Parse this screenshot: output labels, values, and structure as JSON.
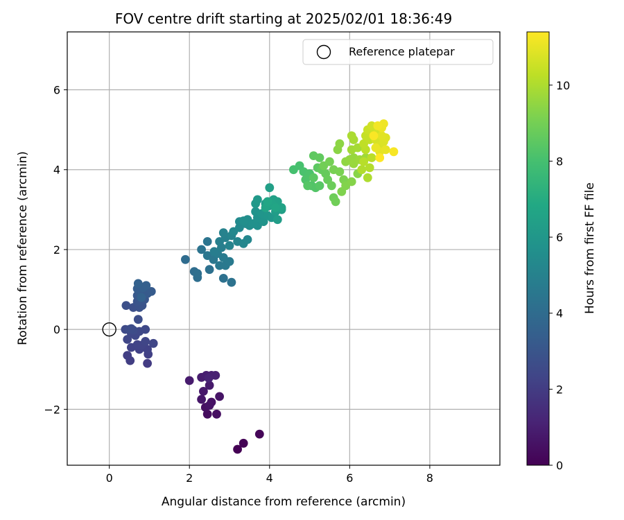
{
  "chart_data": {
    "type": "scatter",
    "title": "FOV centre drift starting at 2025/02/01 18:36:49",
    "xlabel": "Angular distance from reference (arcmin)",
    "ylabel": "Rotation from reference (arcmin)",
    "xlim": [
      -1.05,
      9.75
    ],
    "ylim": [
      -3.4,
      7.45
    ],
    "xticks": [
      0,
      2,
      4,
      6,
      8
    ],
    "xtick_labels": [
      "0",
      "2",
      "4",
      "6",
      "8"
    ],
    "yticks": [
      -2,
      0,
      2,
      4,
      6
    ],
    "ytick_labels": [
      "−2",
      "0",
      "2",
      "4",
      "6"
    ],
    "grid": true,
    "legend": {
      "position": "top-right",
      "entries": [
        {
          "label": "Reference platepar",
          "marker": "open-circle",
          "x": 0,
          "y": 0
        }
      ]
    },
    "colorbar": {
      "label": "Hours from first FF file",
      "colormap": "viridis",
      "range": [
        0,
        11.4
      ],
      "ticks": [
        0,
        2,
        4,
        6,
        8,
        10
      ],
      "tick_labels": [
        "0",
        "2",
        "4",
        "6",
        "8",
        "10"
      ]
    },
    "series": [
      {
        "points": [
          [
            3.2,
            -3.0,
            0.0
          ],
          [
            3.35,
            -2.85,
            0.05
          ],
          [
            3.75,
            -2.62,
            0.15
          ],
          [
            2.45,
            -2.12,
            0.35
          ],
          [
            2.68,
            -2.12,
            0.45
          ],
          [
            2.4,
            -1.95,
            0.5
          ],
          [
            2.55,
            -1.82,
            0.55
          ],
          [
            2.5,
            -1.9,
            0.6
          ],
          [
            2.75,
            -1.68,
            0.62
          ],
          [
            2.3,
            -1.75,
            0.7
          ],
          [
            2.35,
            -1.55,
            0.75
          ],
          [
            2.5,
            -1.4,
            0.8
          ],
          [
            2.0,
            -1.28,
            0.85
          ],
          [
            2.3,
            -1.2,
            0.9
          ],
          [
            2.42,
            -1.15,
            0.95
          ],
          [
            2.55,
            -1.15,
            1.0
          ],
          [
            2.65,
            -1.15,
            1.05
          ],
          [
            2.48,
            -1.22,
            1.1
          ],
          [
            0.95,
            -0.85,
            2.0
          ],
          [
            0.52,
            -0.78,
            2.05
          ],
          [
            0.45,
            -0.65,
            2.1
          ],
          [
            0.97,
            -0.62,
            2.15
          ],
          [
            0.75,
            -0.5,
            2.2
          ],
          [
            0.95,
            -0.5,
            2.2
          ],
          [
            0.55,
            -0.45,
            2.25
          ],
          [
            0.8,
            -0.4,
            2.3
          ],
          [
            0.7,
            -0.38,
            2.3
          ],
          [
            1.1,
            -0.35,
            2.35
          ],
          [
            0.9,
            -0.3,
            2.35
          ],
          [
            0.45,
            -0.25,
            2.4
          ],
          [
            0.65,
            -0.15,
            2.45
          ],
          [
            0.55,
            -0.1,
            2.45
          ],
          [
            0.75,
            -0.05,
            2.5
          ],
          [
            0.9,
            0.0,
            2.5
          ],
          [
            0.4,
            0.0,
            2.55
          ],
          [
            0.5,
            0.0,
            2.6
          ],
          [
            0.6,
            -0.02,
            2.6
          ],
          [
            0.55,
            0.02,
            2.65
          ],
          [
            0.72,
            0.25,
            2.7
          ],
          [
            0.42,
            0.6,
            2.75
          ],
          [
            0.6,
            0.55,
            2.8
          ],
          [
            0.75,
            0.55,
            2.85
          ],
          [
            0.82,
            0.6,
            2.9
          ],
          [
            0.7,
            0.7,
            2.95
          ],
          [
            0.78,
            0.72,
            3.0
          ],
          [
            0.88,
            0.75,
            3.05
          ],
          [
            0.85,
            0.85,
            3.1
          ],
          [
            0.7,
            0.85,
            3.15
          ],
          [
            0.95,
            0.9,
            3.2
          ],
          [
            1.05,
            0.95,
            3.25
          ],
          [
            0.75,
            0.95,
            3.3
          ],
          [
            0.7,
            1.02,
            3.35
          ],
          [
            0.85,
            1.05,
            3.4
          ],
          [
            0.92,
            1.1,
            3.45
          ],
          [
            0.72,
            1.15,
            3.5
          ],
          [
            0.8,
            0.8,
            3.55
          ],
          [
            1.9,
            1.75,
            4.0
          ],
          [
            2.12,
            1.45,
            4.05
          ],
          [
            2.2,
            1.3,
            4.1
          ],
          [
            2.2,
            1.4,
            4.15
          ],
          [
            2.5,
            1.5,
            4.2
          ],
          [
            2.85,
            1.28,
            4.25
          ],
          [
            3.05,
            1.18,
            4.3
          ],
          [
            2.3,
            2.0,
            4.35
          ],
          [
            2.45,
            2.2,
            4.4
          ],
          [
            2.45,
            1.85,
            4.45
          ],
          [
            2.6,
            1.75,
            4.5
          ],
          [
            2.75,
            1.6,
            4.55
          ],
          [
            2.9,
            1.6,
            4.6
          ],
          [
            3.0,
            1.7,
            4.65
          ],
          [
            2.85,
            1.8,
            4.7
          ],
          [
            2.7,
            1.9,
            4.75
          ],
          [
            2.62,
            1.95,
            4.8
          ],
          [
            2.8,
            2.05,
            4.85
          ],
          [
            2.75,
            2.2,
            4.9
          ],
          [
            2.9,
            2.3,
            4.95
          ],
          [
            2.85,
            2.42,
            5.0
          ],
          [
            3.0,
            2.1,
            5.05
          ],
          [
            3.05,
            2.35,
            5.1
          ],
          [
            3.2,
            2.2,
            5.15
          ],
          [
            3.35,
            2.15,
            5.2
          ],
          [
            3.45,
            2.25,
            5.25
          ],
          [
            3.1,
            2.45,
            5.3
          ],
          [
            3.25,
            2.55,
            5.35
          ],
          [
            3.25,
            2.7,
            5.4
          ],
          [
            3.4,
            2.65,
            5.45
          ],
          [
            3.5,
            2.6,
            5.5
          ],
          [
            3.45,
            2.75,
            5.55
          ],
          [
            3.35,
            2.72,
            5.6
          ],
          [
            3.7,
            2.6,
            5.65
          ],
          [
            3.6,
            2.65,
            5.7
          ],
          [
            3.7,
            2.8,
            5.75
          ],
          [
            3.65,
            2.95,
            5.8
          ],
          [
            3.85,
            2.7,
            5.85
          ],
          [
            3.8,
            2.9,
            5.9
          ],
          [
            3.95,
            2.85,
            5.95
          ],
          [
            4.05,
            2.8,
            6.0
          ],
          [
            3.65,
            3.15,
            6.05
          ],
          [
            3.7,
            3.25,
            6.1
          ],
          [
            3.9,
            3.15,
            6.15
          ],
          [
            4.0,
            3.1,
            6.2
          ],
          [
            4.15,
            2.95,
            6.25
          ],
          [
            4.2,
            2.75,
            6.3
          ],
          [
            4.3,
            3.0,
            6.35
          ],
          [
            4.0,
            3.55,
            6.4
          ],
          [
            4.1,
            3.25,
            6.45
          ],
          [
            4.2,
            3.2,
            6.5
          ],
          [
            4.3,
            3.05,
            6.55
          ],
          [
            4.05,
            3.15,
            6.6
          ],
          [
            3.9,
            3.05,
            6.65
          ],
          [
            4.15,
            3.05,
            6.7
          ],
          [
            3.95,
            3.2,
            6.75
          ],
          [
            4.6,
            4.0,
            8.0
          ],
          [
            4.75,
            4.1,
            8.05
          ],
          [
            4.85,
            3.95,
            8.1
          ],
          [
            5.0,
            3.9,
            8.15
          ],
          [
            4.9,
            3.75,
            8.2
          ],
          [
            5.05,
            3.6,
            8.25
          ],
          [
            5.15,
            3.55,
            8.3
          ],
          [
            4.95,
            3.6,
            8.35
          ],
          [
            5.25,
            3.6,
            8.4
          ],
          [
            5.1,
            3.8,
            8.45
          ],
          [
            5.2,
            4.05,
            8.5
          ],
          [
            5.1,
            4.35,
            8.55
          ],
          [
            5.25,
            4.3,
            8.6
          ],
          [
            5.3,
            4.0,
            8.65
          ],
          [
            5.4,
            3.9,
            8.7
          ],
          [
            5.45,
            3.75,
            8.75
          ],
          [
            5.55,
            3.6,
            8.8
          ],
          [
            5.6,
            3.3,
            8.85
          ],
          [
            5.65,
            3.2,
            8.9
          ],
          [
            5.35,
            4.1,
            8.95
          ],
          [
            5.5,
            4.2,
            9.0
          ],
          [
            5.6,
            4.0,
            9.05
          ],
          [
            5.75,
            3.95,
            9.1
          ],
          [
            5.85,
            3.75,
            9.15
          ],
          [
            5.8,
            3.45,
            9.2
          ],
          [
            5.9,
            3.6,
            9.25
          ],
          [
            6.05,
            3.7,
            9.3
          ],
          [
            6.2,
            3.9,
            9.35
          ],
          [
            5.7,
            4.5,
            9.4
          ],
          [
            5.75,
            4.65,
            9.45
          ],
          [
            5.9,
            4.2,
            9.5
          ],
          [
            6.0,
            4.25,
            9.55
          ],
          [
            6.1,
            4.3,
            9.6
          ],
          [
            6.1,
            4.15,
            9.65
          ],
          [
            6.25,
            4.25,
            9.7
          ],
          [
            6.4,
            4.3,
            9.75
          ],
          [
            6.05,
            4.5,
            9.8
          ],
          [
            6.2,
            4.55,
            9.85
          ],
          [
            6.1,
            4.75,
            9.9
          ],
          [
            6.05,
            4.85,
            9.95
          ],
          [
            6.45,
            3.8,
            10.0
          ],
          [
            6.3,
            4.0,
            10.05
          ],
          [
            6.5,
            4.05,
            10.1
          ],
          [
            6.35,
            4.2,
            10.15
          ],
          [
            6.55,
            4.3,
            10.2
          ],
          [
            6.4,
            4.5,
            10.25
          ],
          [
            6.35,
            4.65,
            10.3
          ],
          [
            6.5,
            4.75,
            10.35
          ],
          [
            6.4,
            4.85,
            10.4
          ],
          [
            6.55,
            4.9,
            10.45
          ],
          [
            6.45,
            5.0,
            10.5
          ],
          [
            6.6,
            5.05,
            10.55
          ],
          [
            6.55,
            5.1,
            10.6
          ],
          [
            6.7,
            4.95,
            10.65
          ],
          [
            6.65,
            4.75,
            10.7
          ],
          [
            6.75,
            4.6,
            10.75
          ],
          [
            6.85,
            4.7,
            10.8
          ],
          [
            6.9,
            4.8,
            10.85
          ],
          [
            6.8,
            4.85,
            10.9
          ],
          [
            6.75,
            4.45,
            10.95
          ],
          [
            6.9,
            4.5,
            11.0
          ],
          [
            6.65,
            4.55,
            11.05
          ],
          [
            6.8,
            5.05,
            11.1
          ],
          [
            6.85,
            5.15,
            11.15
          ],
          [
            6.7,
            5.1,
            11.2
          ],
          [
            7.1,
            4.45,
            11.3
          ],
          [
            6.6,
            4.85,
            11.35
          ],
          [
            6.75,
            4.3,
            11.4
          ]
        ]
      }
    ]
  }
}
